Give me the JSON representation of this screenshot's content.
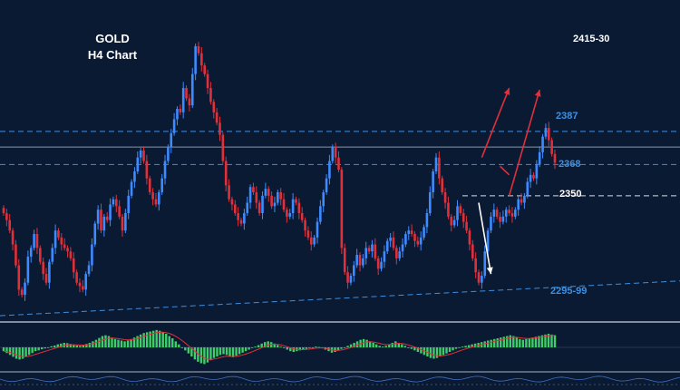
{
  "chart_data": {
    "type": "candlestick",
    "title": "GOLD",
    "subtitle": "H4 Chart",
    "y_unit": "price",
    "ylim": [
      2280,
      2460
    ],
    "bull_color": "#3d8bff",
    "bear_color": "#e0303a",
    "target_label": "2415-30",
    "levels": [
      {
        "value": 2387,
        "label": "2387",
        "style": "dashed",
        "color": "#3d8fe0"
      },
      {
        "value": 2378,
        "label": "",
        "style": "solid",
        "color": "#8a93a6"
      },
      {
        "value": 2368,
        "label": "2368",
        "style": "dashed",
        "color": "#3d8fe0"
      },
      {
        "value": 2350,
        "label": "2350",
        "style": "dashed",
        "color": "#d8dde6"
      }
    ],
    "trendline": {
      "label": "2295-99",
      "start": [
        0,
        2281
      ],
      "end": [
        166,
        2301
      ],
      "color": "#3d8fe0"
    },
    "arrows": [
      {
        "color": "#e0303a",
        "from": [
          157,
          2372
        ],
        "to": [
          166,
          2412
        ]
      },
      {
        "color": "#e0303a",
        "from": [
          163,
          2367
        ],
        "to": [
          166,
          2362
        ]
      },
      {
        "color": "#e0303a",
        "from": [
          166,
          2350
        ],
        "to": [
          176,
          2411
        ]
      },
      {
        "color": "#ffffff",
        "from": [
          156,
          2346
        ],
        "to": [
          160,
          2305
        ]
      }
    ],
    "closes": [
      2340,
      2336,
      2330,
      2322,
      2310,
      2296,
      2293,
      2300,
      2315,
      2320,
      2328,
      2320,
      2312,
      2305,
      2300,
      2312,
      2320,
      2330,
      2326,
      2322,
      2320,
      2318,
      2314,
      2306,
      2300,
      2298,
      2296,
      2305,
      2310,
      2322,
      2334,
      2342,
      2330,
      2338,
      2336,
      2345,
      2348,
      2344,
      2338,
      2330,
      2340,
      2350,
      2358,
      2364,
      2372,
      2376,
      2370,
      2360,
      2352,
      2348,
      2345,
      2352,
      2360,
      2370,
      2378,
      2386,
      2394,
      2400,
      2398,
      2412,
      2406,
      2402,
      2420,
      2436,
      2432,
      2425,
      2420,
      2412,
      2404,
      2398,
      2392,
      2385,
      2370,
      2356,
      2348,
      2345,
      2340,
      2336,
      2334,
      2340,
      2346,
      2355,
      2352,
      2346,
      2340,
      2350,
      2354,
      2350,
      2344,
      2346,
      2352,
      2348,
      2342,
      2338,
      2340,
      2348,
      2346,
      2340,
      2336,
      2330,
      2326,
      2322,
      2326,
      2335,
      2344,
      2352,
      2360,
      2370,
      2378,
      2372,
      2365,
      2320,
      2306,
      2300,
      2304,
      2310,
      2316,
      2310,
      2314,
      2320,
      2318,
      2322,
      2314,
      2308,
      2312,
      2318,
      2324,
      2326,
      2320,
      2314,
      2318,
      2322,
      2328,
      2330,
      2328,
      2324,
      2322,
      2326,
      2332,
      2340,
      2352,
      2364,
      2372,
      2360,
      2352,
      2346,
      2338,
      2333,
      2336,
      2344,
      2340,
      2335,
      2330,
      2322,
      2314,
      2306,
      2300,
      2304,
      2318,
      2330,
      2338,
      2342,
      2338,
      2335,
      2338,
      2342,
      2340,
      2338,
      2342,
      2348,
      2346,
      2350,
      2358,
      2362,
      2360,
      2368,
      2375,
      2384,
      2389,
      2382,
      2374,
      2369
    ],
    "oscillator": {
      "ylim": [
        -6,
        6
      ],
      "signal_color": "#e0303a",
      "values": [
        -1,
        -1.5,
        -2,
        -2.5,
        -3,
        -3.2,
        -3,
        -2.5,
        -2,
        -1.5,
        -1,
        -0.8,
        -0.5,
        -0.3,
        0,
        0.3,
        0.5,
        0.8,
        1,
        1.2,
        1.1,
        0.9,
        0.7,
        0.5,
        0.4,
        0.6,
        0.9,
        1.2,
        1.6,
        2,
        2.5,
        3,
        3.2,
        3.0,
        2.6,
        2.2,
        2,
        1.8,
        1.6,
        1.8,
        2.2,
        2.6,
        3,
        3.4,
        3.8,
        4.0,
        4.2,
        4.4,
        4.6,
        4.4,
        4.0,
        3.6,
        3.0,
        2.4,
        1.6,
        0.8,
        0,
        -0.8,
        -1.6,
        -2.4,
        -3.2,
        -3.8,
        -4.2,
        -4.4,
        -4.0,
        -3.4,
        -2.8,
        -2.4,
        -2.0,
        -1.8,
        -2.0,
        -2.4,
        -2.6,
        -2.2,
        -1.8,
        -1.4,
        -1.0,
        -0.6,
        -0.2,
        0.2,
        0.6,
        1.0,
        1.4,
        1.6,
        1.4,
        1.0,
        0.6,
        0.2,
        -0.2,
        -0.6,
        -1.0,
        -1.2,
        -1.0,
        -0.8,
        -0.6,
        -0.4,
        -0.2,
        0,
        0.2,
        0.1,
        -0.2,
        -0.6,
        -1.0,
        -1.4,
        -1.2,
        -0.8,
        -0.4,
        0,
        0.4,
        0.8,
        1.2,
        1.6,
        2.0,
        2.2,
        2.0,
        1.6,
        1.2,
        0.8,
        0.4,
        0.2,
        0.4,
        0.8,
        1.2,
        1.6,
        1.2,
        0.8,
        0.4,
        0,
        -0.4,
        -0.8,
        -1.2,
        -1.6,
        -2.0,
        -2.4,
        -2.8,
        -3.0,
        -2.8,
        -2.4,
        -2.0,
        -1.6,
        -1.2,
        -0.8,
        -0.4,
        0,
        0.2,
        0.4,
        0.6,
        0.8,
        1.0,
        1.2,
        1.4,
        1.6,
        1.8,
        2.0,
        2.2,
        2.4,
        2.6,
        2.8,
        3.0,
        3.2,
        3.0,
        2.6,
        2.2,
        2.0,
        2.2,
        2.4,
        2.6,
        2.8,
        3.0,
        3.2,
        3.4,
        3.6,
        3.4,
        3.2
      ]
    }
  }
}
